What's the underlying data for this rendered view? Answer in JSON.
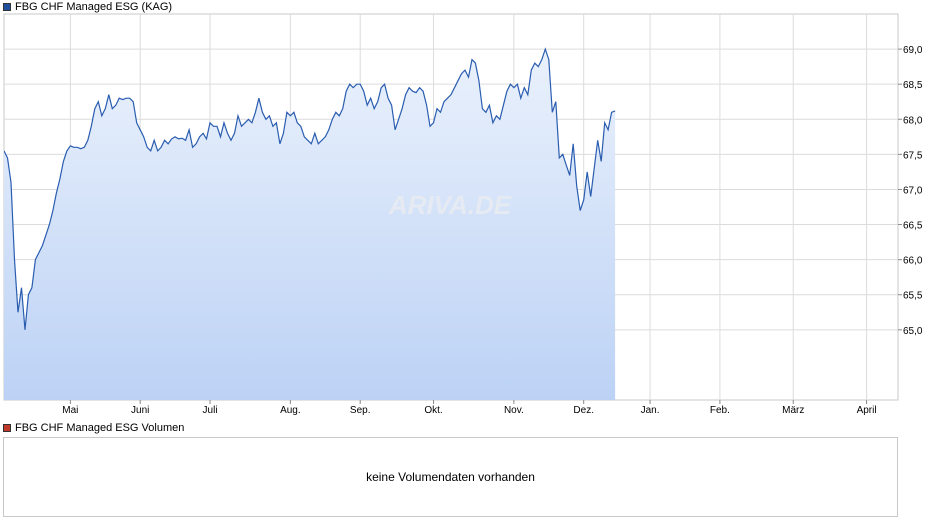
{
  "legend": {
    "price_label": "FBG CHF Managed ESG (KAG)",
    "price_color": "#1f4e9c",
    "volume_label": "FBG CHF Managed ESG Volumen",
    "volume_color": "#c0392b"
  },
  "watermark": {
    "text": "ARIVA.DE"
  },
  "volume": {
    "message": "keine Volumendaten vorhanden"
  },
  "chart_data": {
    "type": "area",
    "ylim": [
      64.0,
      69.5
    ],
    "yticks": [
      65.0,
      65.5,
      66.0,
      66.5,
      67.0,
      67.5,
      68.0,
      68.5,
      69.0
    ],
    "ytick_labels": [
      "65,0",
      "65,5",
      "66,0",
      "66,5",
      "67,0",
      "67,5",
      "68,0",
      "68,5",
      "69,0"
    ],
    "x_range": [
      0,
      256
    ],
    "x_ticks": [
      {
        "label": "Mai",
        "x": 19
      },
      {
        "label": "Juni",
        "x": 39
      },
      {
        "label": "Juli",
        "x": 59
      },
      {
        "label": "Aug.",
        "x": 82
      },
      {
        "label": "Sep.",
        "x": 102
      },
      {
        "label": "Okt.",
        "x": 123
      },
      {
        "label": "Nov.",
        "x": 146
      },
      {
        "label": "Dez.",
        "x": 166
      },
      {
        "label": "Jan.",
        "x": 185
      },
      {
        "label": "Feb.",
        "x": 205
      },
      {
        "label": "März",
        "x": 226
      },
      {
        "label": "April",
        "x": 247
      }
    ],
    "line_color": "#2a5db0",
    "fill_top_color": "#eaf1fc",
    "fill_bottom_color": "#bcd2f5",
    "grid": true,
    "series": [
      {
        "values": [
          [
            0,
            67.55
          ],
          [
            1,
            67.45
          ],
          [
            2,
            67.1
          ],
          [
            3,
            66.0
          ],
          [
            4,
            65.25
          ],
          [
            5,
            65.6
          ],
          [
            6,
            65.0
          ],
          [
            7,
            65.5
          ],
          [
            8,
            65.6
          ],
          [
            9,
            66.0
          ],
          [
            10,
            66.1
          ],
          [
            11,
            66.2
          ],
          [
            12,
            66.35
          ],
          [
            13,
            66.5
          ],
          [
            14,
            66.7
          ],
          [
            15,
            66.95
          ],
          [
            16,
            67.15
          ],
          [
            17,
            67.4
          ],
          [
            18,
            67.55
          ],
          [
            19,
            67.62
          ],
          [
            20,
            67.6
          ],
          [
            21,
            67.6
          ],
          [
            22,
            67.58
          ],
          [
            23,
            67.6
          ],
          [
            24,
            67.7
          ],
          [
            25,
            67.9
          ],
          [
            26,
            68.15
          ],
          [
            27,
            68.25
          ],
          [
            28,
            68.05
          ],
          [
            29,
            68.15
          ],
          [
            30,
            68.35
          ],
          [
            31,
            68.15
          ],
          [
            32,
            68.2
          ],
          [
            33,
            68.3
          ],
          [
            34,
            68.28
          ],
          [
            35,
            68.3
          ],
          [
            36,
            68.3
          ],
          [
            37,
            68.25
          ],
          [
            38,
            67.95
          ],
          [
            39,
            67.85
          ],
          [
            40,
            67.75
          ],
          [
            41,
            67.6
          ],
          [
            42,
            67.55
          ],
          [
            43,
            67.7
          ],
          [
            44,
            67.55
          ],
          [
            45,
            67.6
          ],
          [
            46,
            67.7
          ],
          [
            47,
            67.65
          ],
          [
            48,
            67.72
          ],
          [
            49,
            67.75
          ],
          [
            50,
            67.72
          ],
          [
            51,
            67.73
          ],
          [
            52,
            67.7
          ],
          [
            53,
            67.85
          ],
          [
            54,
            67.6
          ],
          [
            55,
            67.65
          ],
          [
            56,
            67.75
          ],
          [
            57,
            67.8
          ],
          [
            58,
            67.72
          ],
          [
            59,
            67.95
          ],
          [
            60,
            67.9
          ],
          [
            61,
            67.9
          ],
          [
            62,
            67.75
          ],
          [
            63,
            67.95
          ],
          [
            64,
            67.8
          ],
          [
            65,
            67.7
          ],
          [
            66,
            67.8
          ],
          [
            67,
            68.05
          ],
          [
            68,
            67.9
          ],
          [
            69,
            67.95
          ],
          [
            70,
            68.0
          ],
          [
            71,
            67.95
          ],
          [
            72,
            68.1
          ],
          [
            73,
            68.3
          ],
          [
            74,
            68.1
          ],
          [
            75,
            68.0
          ],
          [
            76,
            68.05
          ],
          [
            77,
            67.9
          ],
          [
            78,
            67.95
          ],
          [
            79,
            67.65
          ],
          [
            80,
            67.8
          ],
          [
            81,
            68.1
          ],
          [
            82,
            68.05
          ],
          [
            83,
            68.1
          ],
          [
            84,
            67.95
          ],
          [
            85,
            67.9
          ],
          [
            86,
            67.75
          ],
          [
            87,
            67.7
          ],
          [
            88,
            67.65
          ],
          [
            89,
            67.8
          ],
          [
            90,
            67.65
          ],
          [
            91,
            67.7
          ],
          [
            92,
            67.75
          ],
          [
            93,
            67.85
          ],
          [
            94,
            68.0
          ],
          [
            95,
            68.1
          ],
          [
            96,
            68.05
          ],
          [
            97,
            68.15
          ],
          [
            98,
            68.4
          ],
          [
            99,
            68.5
          ],
          [
            100,
            68.45
          ],
          [
            101,
            68.5
          ],
          [
            102,
            68.5
          ],
          [
            103,
            68.4
          ],
          [
            104,
            68.2
          ],
          [
            105,
            68.3
          ],
          [
            106,
            68.15
          ],
          [
            107,
            68.25
          ],
          [
            108,
            68.45
          ],
          [
            109,
            68.5
          ],
          [
            110,
            68.3
          ],
          [
            111,
            68.2
          ],
          [
            112,
            67.85
          ],
          [
            113,
            68.0
          ],
          [
            114,
            68.15
          ],
          [
            115,
            68.35
          ],
          [
            116,
            68.45
          ],
          [
            117,
            68.4
          ],
          [
            118,
            68.38
          ],
          [
            119,
            68.45
          ],
          [
            120,
            68.4
          ],
          [
            121,
            68.2
          ],
          [
            122,
            67.9
          ],
          [
            123,
            67.95
          ],
          [
            124,
            68.15
          ],
          [
            125,
            68.1
          ],
          [
            126,
            68.25
          ],
          [
            127,
            68.3
          ],
          [
            128,
            68.35
          ],
          [
            129,
            68.45
          ],
          [
            130,
            68.55
          ],
          [
            131,
            68.65
          ],
          [
            132,
            68.7
          ],
          [
            133,
            68.6
          ],
          [
            134,
            68.85
          ],
          [
            135,
            68.8
          ],
          [
            136,
            68.55
          ],
          [
            137,
            68.15
          ],
          [
            138,
            68.1
          ],
          [
            139,
            68.2
          ],
          [
            140,
            67.95
          ],
          [
            141,
            68.05
          ],
          [
            142,
            68.0
          ],
          [
            143,
            68.2
          ],
          [
            144,
            68.4
          ],
          [
            145,
            68.5
          ],
          [
            146,
            68.45
          ],
          [
            147,
            68.5
          ],
          [
            148,
            68.3
          ],
          [
            149,
            68.45
          ],
          [
            150,
            68.35
          ],
          [
            151,
            68.7
          ],
          [
            152,
            68.8
          ],
          [
            153,
            68.75
          ],
          [
            154,
            68.85
          ],
          [
            155,
            69.0
          ],
          [
            156,
            68.85
          ],
          [
            157,
            68.1
          ],
          [
            158,
            68.25
          ],
          [
            159,
            67.45
          ],
          [
            160,
            67.5
          ],
          [
            161,
            67.35
          ],
          [
            162,
            67.2
          ],
          [
            163,
            67.65
          ],
          [
            164,
            67.05
          ],
          [
            165,
            66.7
          ],
          [
            166,
            66.85
          ],
          [
            167,
            67.25
          ],
          [
            168,
            66.9
          ],
          [
            169,
            67.3
          ],
          [
            170,
            67.7
          ],
          [
            171,
            67.4
          ],
          [
            172,
            67.95
          ],
          [
            173,
            67.85
          ],
          [
            174,
            68.1
          ],
          [
            175,
            68.12
          ]
        ]
      }
    ]
  }
}
